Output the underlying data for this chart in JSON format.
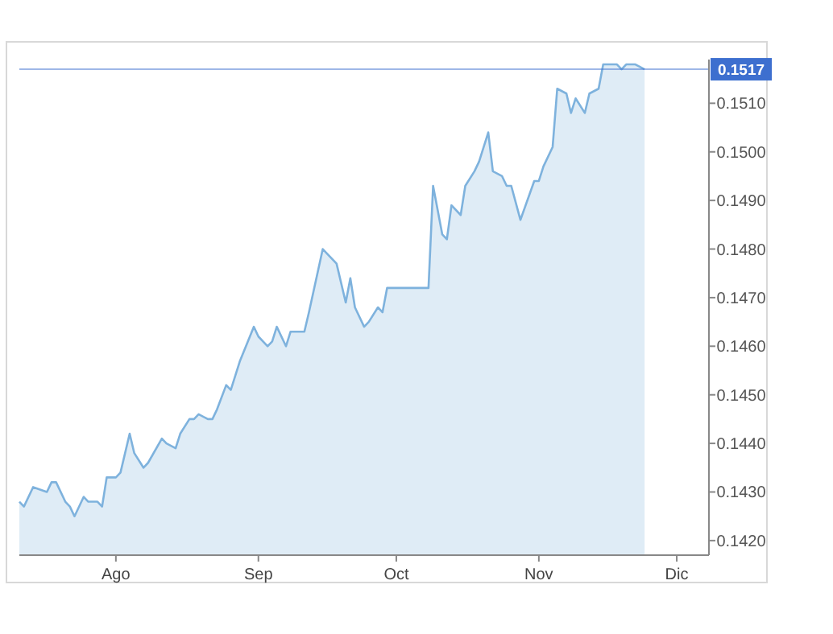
{
  "chart_data": {
    "type": "area",
    "x": [
      "--07-11",
      "--07-12",
      "--07-14",
      "--07-17",
      "--07-18",
      "--07-19",
      "--07-21",
      "--07-22",
      "--07-23",
      "--07-25",
      "--07-26",
      "--07-28",
      "--07-29",
      "--07-30",
      "--08-01",
      "--08-02",
      "--08-04",
      "--08-05",
      "--08-07",
      "--08-08",
      "--08-11",
      "--08-12",
      "--08-14",
      "--08-15",
      "--08-17",
      "--08-18",
      "--08-19",
      "--08-21",
      "--08-22",
      "--08-23",
      "--08-25",
      "--08-26",
      "--08-28",
      "--08-31",
      "--09-01",
      "--09-03",
      "--09-04",
      "--09-05",
      "--09-07",
      "--09-08",
      "--09-10",
      "--09-11",
      "--09-12",
      "--09-15",
      "--09-17",
      "--09-18",
      "--09-20",
      "--09-21",
      "--09-22",
      "--09-24",
      "--09-25",
      "--09-27",
      "--09-28",
      "--09-29",
      "--10-08",
      "--10-09",
      "--10-11",
      "--10-12",
      "--10-13",
      "--10-15",
      "--10-16",
      "--10-18",
      "--10-19",
      "--10-21",
      "--10-22",
      "--10-24",
      "--10-25",
      "--10-26",
      "--10-28",
      "--10-31",
      "--11-01",
      "--11-02",
      "--11-04",
      "--11-05",
      "--11-07",
      "--11-08",
      "--11-09",
      "--11-11",
      "--11-12",
      "--11-14",
      "--11-15",
      "--11-18",
      "--11-19",
      "--11-20",
      "--11-22",
      "--11-24"
    ],
    "series": [
      {
        "color": "#7eb2dd",
        "values": [
          0.1428,
          0.1427,
          0.1431,
          0.143,
          0.1432,
          0.1432,
          0.1428,
          0.1427,
          0.1425,
          0.1429,
          0.1428,
          0.1428,
          0.1427,
          0.1433,
          0.1433,
          0.1434,
          0.1442,
          0.1438,
          0.1435,
          0.1436,
          0.1441,
          0.144,
          0.1439,
          0.1442,
          0.1445,
          0.1445,
          0.1446,
          0.1445,
          0.1445,
          0.1447,
          0.1452,
          0.1451,
          0.1457,
          0.1464,
          0.1462,
          0.146,
          0.1461,
          0.1464,
          0.146,
          0.1463,
          0.1463,
          0.1463,
          0.1467,
          0.148,
          0.1478,
          0.1477,
          0.1469,
          0.1474,
          0.1468,
          0.1464,
          0.1465,
          0.1468,
          0.1467,
          0.1472,
          0.1472,
          0.1493,
          0.1483,
          0.1482,
          0.1489,
          0.1487,
          0.1493,
          0.1496,
          0.1498,
          0.1504,
          0.1496,
          0.1495,
          0.1493,
          0.1493,
          0.1486,
          0.1494,
          0.1494,
          0.1497,
          0.1501,
          0.1513,
          0.1512,
          0.1508,
          0.1511,
          0.1508,
          0.1512,
          0.1513,
          0.1518,
          0.1518,
          0.1517,
          0.1518,
          0.1518,
          0.1517
        ]
      }
    ],
    "xlim": [
      "--07-11",
      "--12-08"
    ],
    "xticks": [
      {
        "value": "--08-01",
        "label": "Ago"
      },
      {
        "value": "--09-01",
        "label": "Sep"
      },
      {
        "value": "--10-01",
        "label": "Oct"
      },
      {
        "value": "--11-01",
        "label": "Nov"
      },
      {
        "value": "--12-01",
        "label": "Dic"
      }
    ],
    "ylim": [
      0.1417,
      0.1519
    ],
    "yticks": [
      {
        "value": 0.142,
        "label": "0.1420"
      },
      {
        "value": 0.143,
        "label": "0.1430"
      },
      {
        "value": 0.144,
        "label": "0.1440"
      },
      {
        "value": 0.145,
        "label": "0.1450"
      },
      {
        "value": 0.146,
        "label": "0.1460"
      },
      {
        "value": 0.147,
        "label": "0.1470"
      },
      {
        "value": 0.148,
        "label": "0.1480"
      },
      {
        "value": 0.149,
        "label": "0.1490"
      },
      {
        "value": 0.15,
        "label": "0.1500"
      },
      {
        "value": 0.151,
        "label": "0.1510"
      }
    ],
    "ref_lines": [
      {
        "axis": "y",
        "value": 0.1517,
        "label": "0.1517",
        "color": "#3d6fcf"
      }
    ],
    "grid": false
  }
}
